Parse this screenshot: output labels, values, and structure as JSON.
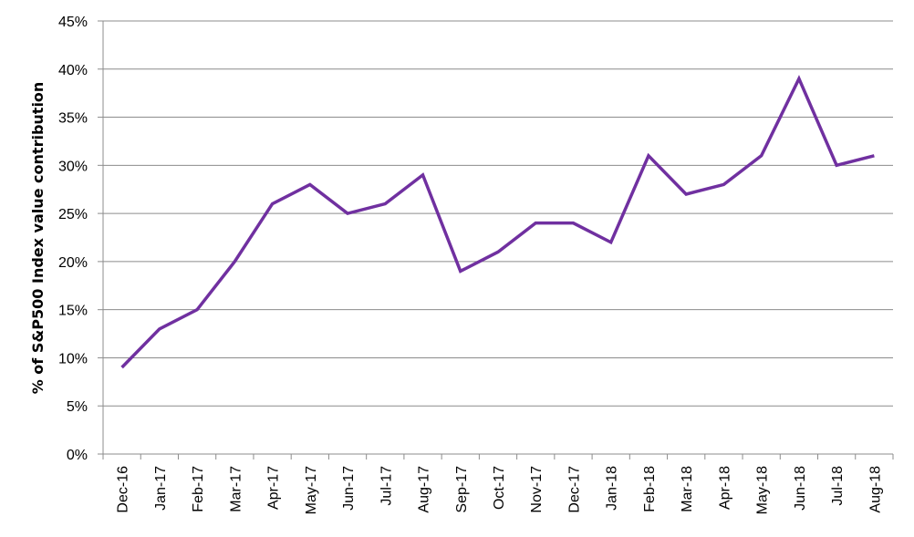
{
  "chart_data": {
    "type": "line",
    "title": "",
    "xlabel": "",
    "ylabel": "% of S&P500 Index value contribution",
    "categories": [
      "Dec-16",
      "Jan-17",
      "Feb-17",
      "Mar-17",
      "Apr-17",
      "May-17",
      "Jun-17",
      "Jul-17",
      "Aug-17",
      "Sep-17",
      "Oct-17",
      "Nov-17",
      "Dec-17",
      "Jan-18",
      "Feb-18",
      "Mar-18",
      "Apr-18",
      "May-18",
      "Jun-18",
      "Jul-18",
      "Aug-18"
    ],
    "series": [
      {
        "values": [
          9,
          13,
          15,
          20,
          26,
          28,
          25,
          26,
          29,
          19,
          21,
          24,
          24,
          22,
          31,
          27,
          28,
          31,
          39,
          30,
          31
        ]
      }
    ],
    "ylim": [
      0,
      45
    ],
    "yticks": [
      0,
      5,
      10,
      15,
      20,
      25,
      30,
      35,
      40,
      45
    ],
    "ytick_labels": [
      "0%",
      "5%",
      "10%",
      "15%",
      "20%",
      "25%",
      "30%",
      "35%",
      "40%",
      "45%"
    ],
    "grid": "horizontal",
    "legend": "none",
    "colors": {
      "line": "#7030a0",
      "grid": "#8c8c8c",
      "axis": "#8c8c8c"
    }
  }
}
